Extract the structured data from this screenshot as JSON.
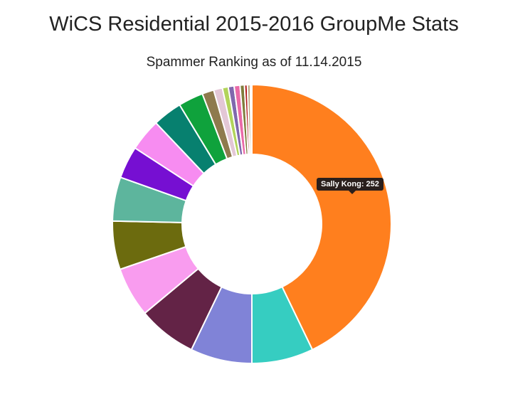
{
  "page": {
    "title": "WiCS Residential 2015-2016 GroupMe Stats",
    "subtitle": "Spammer Ranking as of 11.14.2015"
  },
  "tooltip": {
    "text": "Sally Kong: 252"
  },
  "chart_data": {
    "type": "pie",
    "variant": "donut",
    "title": "WiCS Residential 2015-2016 GroupMe Stats",
    "subtitle": "Spammer Ranking as of 11.14.2015",
    "slices": [
      {
        "label": "Sally Kong",
        "value": 252,
        "color": "#ff7f1e"
      },
      {
        "label": "",
        "value": 42,
        "color": "#36cdc1"
      },
      {
        "label": "",
        "value": 42,
        "color": "#8083d7"
      },
      {
        "label": "",
        "value": 40,
        "color": "#632346"
      },
      {
        "label": "",
        "value": 34,
        "color": "#f99cef"
      },
      {
        "label": "",
        "value": 33,
        "color": "#6c6b0e"
      },
      {
        "label": "",
        "value": 30,
        "color": "#5db59d"
      },
      {
        "label": "",
        "value": 22,
        "color": "#760fd2"
      },
      {
        "label": "",
        "value": 22,
        "color": "#f78cf1"
      },
      {
        "label": "",
        "value": 20,
        "color": "#07806f"
      },
      {
        "label": "",
        "value": 17,
        "color": "#0fa23c"
      },
      {
        "label": "",
        "value": 8,
        "color": "#8e7a4d"
      },
      {
        "label": "",
        "value": 6,
        "color": "#e3c7d6"
      },
      {
        "label": "",
        "value": 4,
        "color": "#b2d45b"
      },
      {
        "label": "",
        "value": 4,
        "color": "#7f68ad"
      },
      {
        "label": "",
        "value": 4,
        "color": "#ea6aa8"
      },
      {
        "label": "",
        "value": 3,
        "color": "#7f7d3c"
      },
      {
        "label": "",
        "value": 2,
        "color": "#b01c1c"
      },
      {
        "label": "",
        "value": 2,
        "color": "#b9a77f"
      },
      {
        "label": "",
        "value": 1,
        "color": "#4e2a7d"
      }
    ],
    "highlighted": "Sally Kong"
  }
}
